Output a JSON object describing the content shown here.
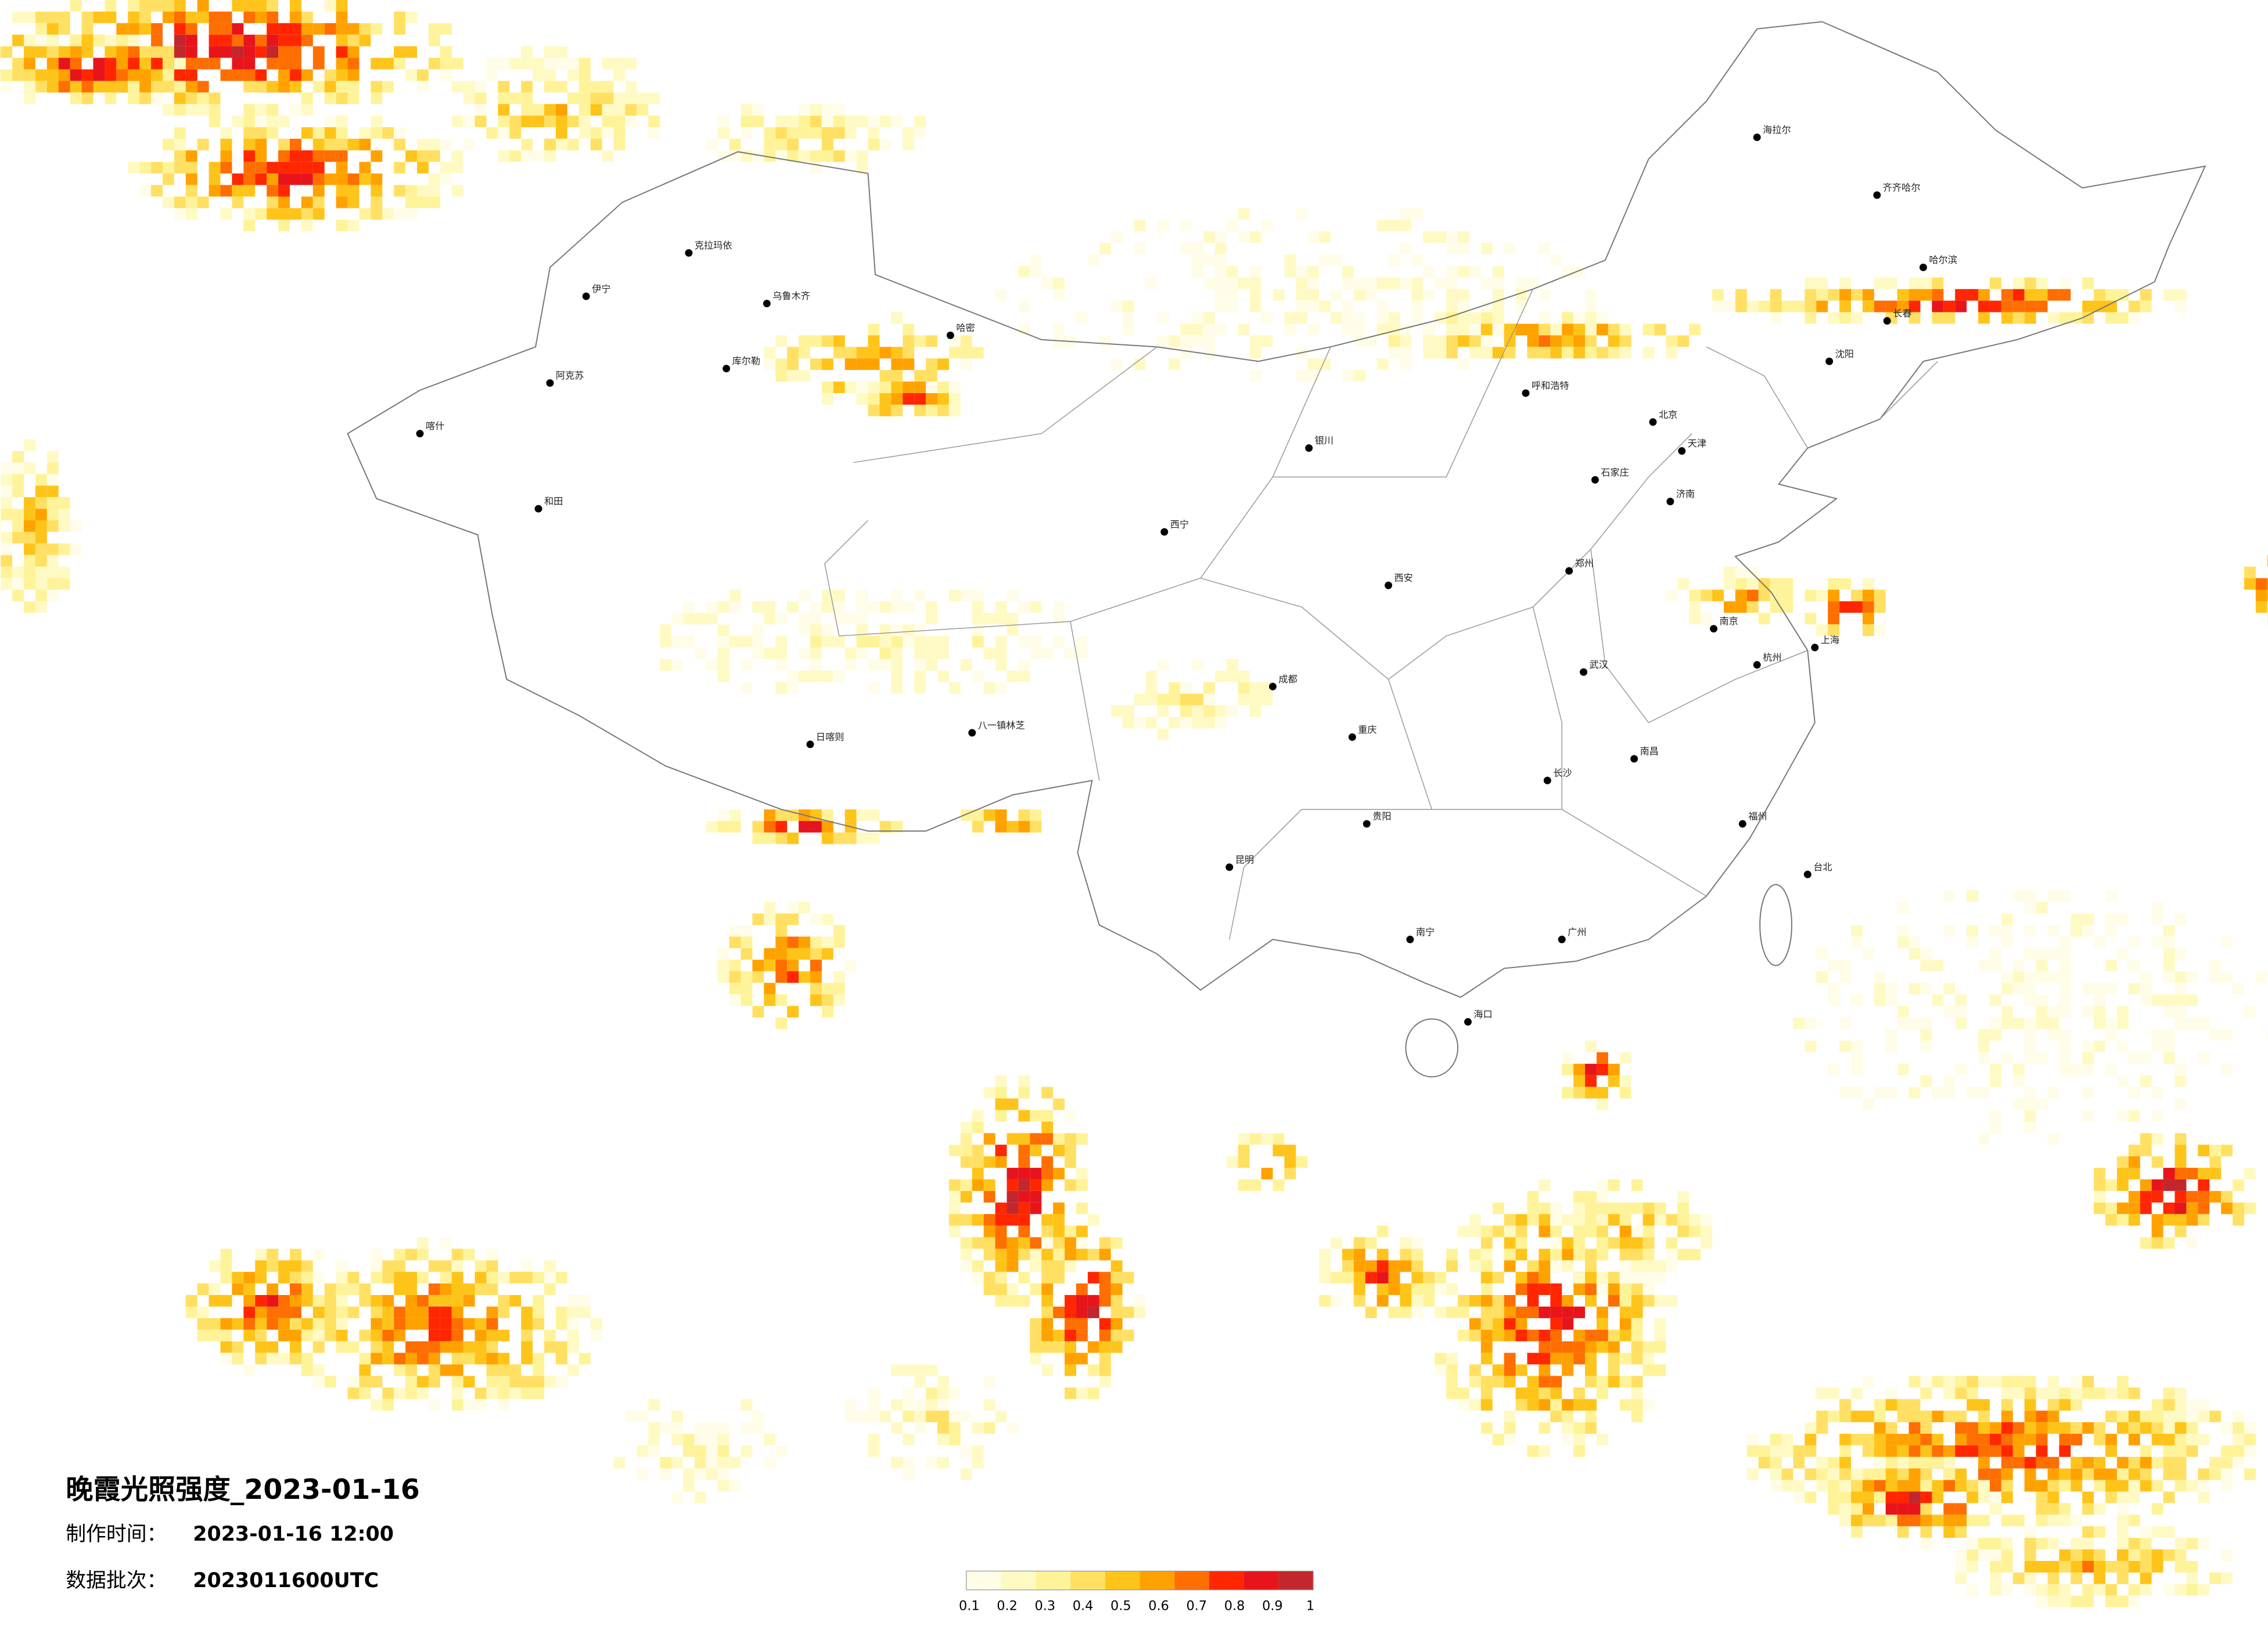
{
  "title": "晚霞光照强度_2023-01-16",
  "production_time": {
    "label": "制作时间：",
    "value": "2023-01-16 12:00"
  },
  "data_batch": {
    "label": "数据批次：",
    "value": "2023011600UTC"
  },
  "legend": {
    "ticks": [
      0.1,
      0.2,
      0.3,
      0.4,
      0.5,
      0.6,
      0.7,
      0.8,
      0.9,
      1
    ],
    "colors": [
      "#fffde8",
      "#fffac4",
      "#fff39a",
      "#ffe062",
      "#ffc41a",
      "#ffa200",
      "#ff6e00",
      "#ff2600",
      "#e8141c",
      "#c1272d"
    ]
  },
  "cities": [
    "克拉玛依",
    "乌鲁木齐",
    "伊宁",
    "哈密",
    "库尔勒",
    "阿克苏",
    "喀什",
    "和田",
    "日喀则",
    "八一镇林芝",
    "西宁",
    "银川",
    "呼和浩特",
    "北京",
    "天津",
    "石家庄",
    "济南",
    "郑州",
    "西安",
    "成都",
    "重庆",
    "武汉",
    "长沙",
    "南昌",
    "贵阳",
    "昆明",
    "南宁",
    "广州",
    "福州",
    "杭州",
    "上海",
    "南京",
    "沈阳",
    "长春",
    "哈尔滨",
    "海拉尔",
    "齐齐哈尔",
    "海口",
    "台北"
  ]
}
